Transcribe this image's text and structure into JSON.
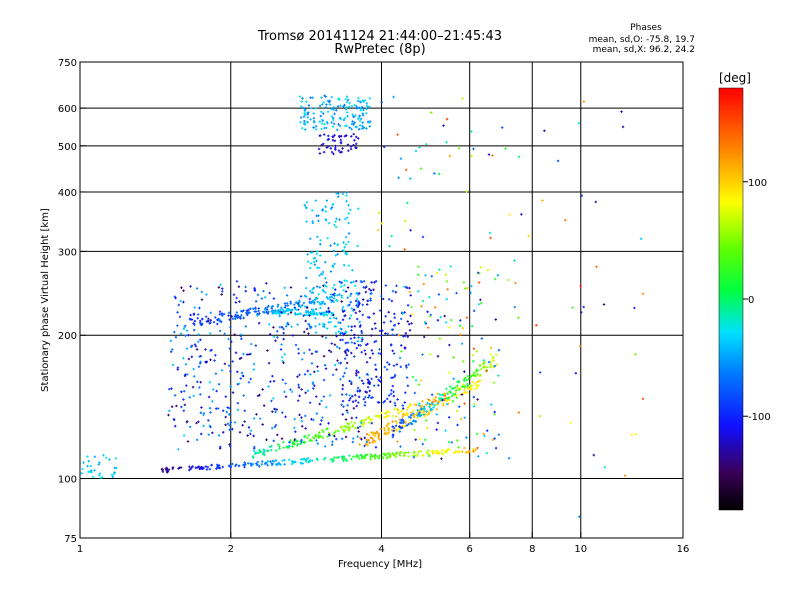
{
  "chart_data": {
    "type": "scatter",
    "title": "Tromsø 20141124 21:44:00–21:45:43",
    "subtitle": "RwPretec (8p)",
    "stats": {
      "heading": "Phases",
      "line1": "mean, sd,O: -75.8, 19.7",
      "line2": "mean, sd,X:  96.2, 24.2"
    },
    "xlabel": "Frequency [MHz]",
    "ylabel": "Stationary phase Virtual Height [km]",
    "x_scale": "log",
    "y_scale": "log",
    "xlim": [
      1,
      16
    ],
    "ylim": [
      75,
      750
    ],
    "x_ticks": [
      1,
      2,
      4,
      6,
      8,
      10,
      16
    ],
    "y_ticks": [
      75,
      100,
      200,
      300,
      400,
      500,
      600,
      750
    ],
    "grid_x": [
      2,
      4,
      6,
      8,
      10
    ],
    "grid_y": [
      100,
      200,
      300,
      400,
      500,
      600
    ],
    "colorbar": {
      "label": "[deg]",
      "range": [
        -180,
        180
      ],
      "ticks": [
        100,
        0,
        -100
      ]
    },
    "series": [
      {
        "type": "band",
        "h_start": 104,
        "h_end": 115,
        "f_start": 1.45,
        "f_end": 6.2,
        "phase_start": -140,
        "phase_end": 110,
        "count": 260,
        "spread": 0.012
      },
      {
        "type": "band",
        "h_start": 112,
        "h_end": 148,
        "f_start": 2.2,
        "f_end": 5.4,
        "phase_start": -20,
        "phase_end": 130,
        "count": 180,
        "spread": 0.02
      },
      {
        "type": "band",
        "h_start": 118,
        "h_end": 160,
        "f_start": 3.6,
        "f_end": 6.3,
        "phase_start": 120,
        "phase_end": 80,
        "count": 160,
        "spread": 0.03
      },
      {
        "type": "band",
        "h_start": 125,
        "h_end": 178,
        "f_start": 4.2,
        "f_end": 6.8,
        "phase_start": -90,
        "phase_end": 70,
        "count": 130,
        "spread": 0.03
      },
      {
        "type": "band",
        "h_start": 212,
        "h_end": 240,
        "f_start": 1.65,
        "f_end": 3.3,
        "phase_start": -100,
        "phase_end": -40,
        "count": 140,
        "spread": 0.02
      },
      {
        "type": "band",
        "h_start": 225,
        "h_end": 222,
        "f_start": 2.4,
        "f_end": 3.2,
        "phase_start": -40,
        "phase_end": -30,
        "count": 70,
        "spread": 0.012
      },
      {
        "type": "cloud",
        "f_min": 1.5,
        "f_max": 3.9,
        "h_min": 115,
        "h_max": 260,
        "phase_min": -150,
        "phase_max": -30,
        "count": 520
      },
      {
        "type": "cloud",
        "f_min": 2.8,
        "f_max": 3.6,
        "h_min": 200,
        "h_max": 400,
        "phase_min": -60,
        "phase_max": -20,
        "count": 170
      },
      {
        "type": "cloud",
        "f_min": 3.3,
        "f_max": 4.6,
        "h_min": 140,
        "h_max": 260,
        "phase_min": -130,
        "phase_max": -70,
        "count": 200
      },
      {
        "type": "cloud",
        "f_min": 2.75,
        "f_max": 3.8,
        "h_min": 540,
        "h_max": 640,
        "phase_min": -70,
        "phase_max": -20,
        "count": 160
      },
      {
        "type": "cloud",
        "f_min": 3.0,
        "f_max": 3.6,
        "h_min": 480,
        "h_max": 530,
        "phase_min": -130,
        "phase_max": -100,
        "count": 50
      },
      {
        "type": "cloud",
        "f_min": 4.3,
        "f_max": 6.9,
        "h_min": 110,
        "h_max": 280,
        "phase_min": -140,
        "phase_max": 150,
        "count": 160
      },
      {
        "type": "cloud",
        "f_min": 1.0,
        "f_max": 1.2,
        "h_min": 100,
        "h_max": 112,
        "phase_min": -50,
        "phase_max": -20,
        "count": 30
      },
      {
        "type": "cloud",
        "f_min": 3.8,
        "f_max": 7.2,
        "h_min": 300,
        "h_max": 640,
        "phase_min": -120,
        "phase_max": 160,
        "count": 40
      },
      {
        "type": "cloud",
        "f_min": 7.0,
        "f_max": 14.0,
        "h_min": 80,
        "h_max": 620,
        "phase_min": -140,
        "phase_max": 170,
        "count": 45
      }
    ]
  }
}
